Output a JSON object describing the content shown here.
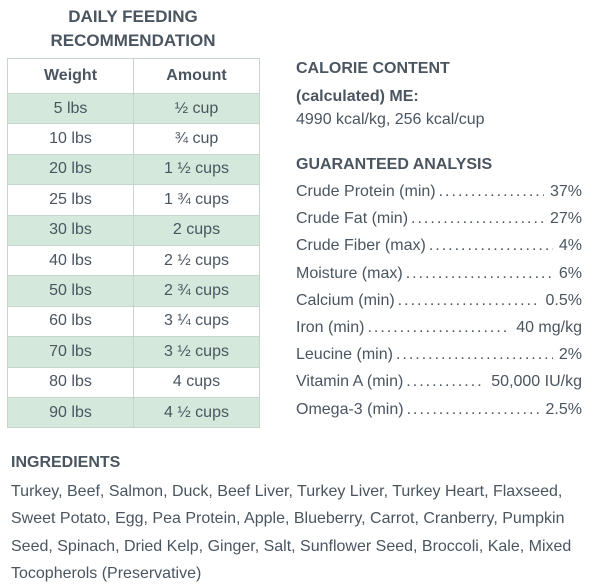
{
  "feeding": {
    "title": "DAILY FEEDING RECOMMENDATION",
    "headers": [
      "Weight",
      "Amount"
    ],
    "rows": [
      [
        "5 lbs",
        "½ cup"
      ],
      [
        "10 lbs",
        "¾ cup"
      ],
      [
        "20 lbs",
        "1 ½ cups"
      ],
      [
        "25 lbs",
        "1 ¾ cups"
      ],
      [
        "30 lbs",
        "2 cups"
      ],
      [
        "40 lbs",
        "2 ½ cups"
      ],
      [
        "50 lbs",
        "2 ¾ cups"
      ],
      [
        "60 lbs",
        "3 ¼ cups"
      ],
      [
        "70 lbs",
        "3 ½ cups"
      ],
      [
        "80 lbs",
        "4 cups"
      ],
      [
        "90 lbs",
        "4 ½ cups"
      ]
    ]
  },
  "calorie": {
    "heading_line1": "CALORIE CONTENT",
    "heading_line2": "(calculated) ME:",
    "value": "4990 kcal/kg, 256 kcal/cup"
  },
  "analysis": {
    "heading": "GUARANTEED ANALYSIS",
    "items": [
      {
        "label": "Crude Protein (min)",
        "value": "37%"
      },
      {
        "label": "Crude Fat (min)",
        "value": "27%"
      },
      {
        "label": "Crude Fiber (max)",
        "value": "4%"
      },
      {
        "label": "Moisture (max)",
        "value": "6%"
      },
      {
        "label": "Calcium (min)",
        "value": "0.5%"
      },
      {
        "label": "Iron (min)",
        "value": "40 mg/kg"
      },
      {
        "label": "Leucine (min)",
        "value": "2%"
      },
      {
        "label": "Vitamin A (min)",
        "value": "50,000 IU/kg"
      },
      {
        "label": "Omega-3 (min)",
        "value": "2.5%"
      }
    ]
  },
  "ingredients": {
    "heading": "INGREDIENTS",
    "text": "Turkey, Beef, Salmon, Duck, Beef Liver, Turkey Liver, Turkey Heart, Flaxseed, Sweet Potato, Egg, Pea Protein, Apple, Blueberry, Carrot, Cranberry, Pumpkin Seed, Spinach, Dried Kelp, Ginger, Salt, Sunflower Seed, Broccoli, Kale, Mixed Tocopherols (Preservative)"
  },
  "colors": {
    "text": "#4a5560",
    "row_highlight": "#d4e9db",
    "border": "#c7d6cc"
  }
}
